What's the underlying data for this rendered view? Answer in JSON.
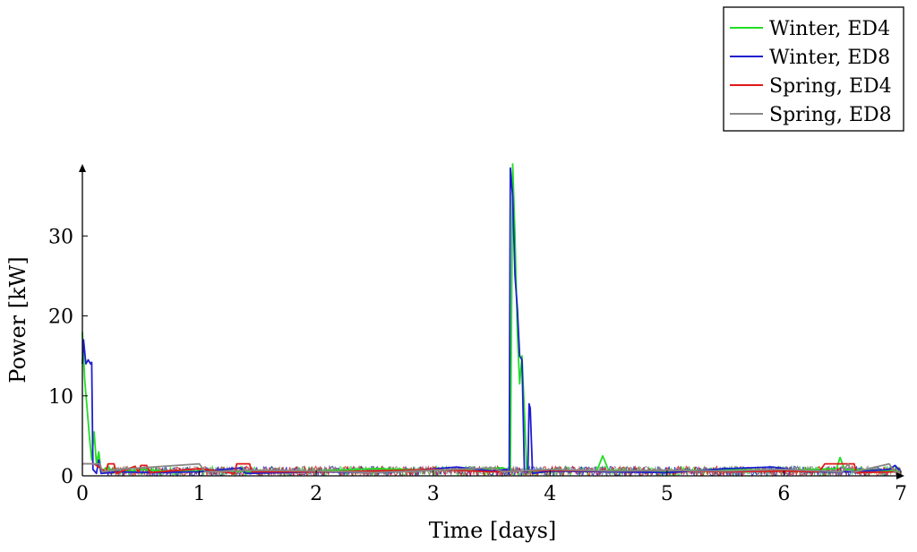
{
  "chart_data": {
    "type": "line",
    "title": "",
    "xlabel": "Time [days]",
    "ylabel": "Power [kW]",
    "xlim": [
      0,
      7
    ],
    "ylim": [
      0,
      39
    ],
    "x_ticks": [
      0,
      1,
      2,
      3,
      4,
      5,
      6,
      7
    ],
    "y_ticks": [
      0,
      10,
      20,
      30
    ],
    "grid": false,
    "legend_position": "top-right",
    "series": [
      {
        "name": "Winter, ED4",
        "color": "#22dd22",
        "points": [
          [
            0.0,
            18.0
          ],
          [
            0.02,
            12.0
          ],
          [
            0.04,
            8.5
          ],
          [
            0.06,
            5.0
          ],
          [
            0.08,
            2.0
          ],
          [
            0.1,
            5.5
          ],
          [
            0.12,
            1.5
          ],
          [
            0.14,
            3.0
          ],
          [
            0.16,
            0.5
          ],
          [
            0.2,
            1.0
          ],
          [
            0.3,
            0.4
          ],
          [
            0.5,
            0.8
          ],
          [
            0.8,
            0.5
          ],
          [
            1.0,
            0.6
          ],
          [
            1.5,
            0.5
          ],
          [
            2.0,
            0.6
          ],
          [
            2.5,
            0.9
          ],
          [
            3.0,
            0.7
          ],
          [
            3.3,
            0.8
          ],
          [
            3.6,
            1.0
          ],
          [
            3.66,
            0.5
          ],
          [
            3.68,
            39.0
          ],
          [
            3.7,
            30.0
          ],
          [
            3.72,
            18.0
          ],
          [
            3.74,
            11.5
          ],
          [
            3.76,
            15.0
          ],
          [
            3.78,
            8.0
          ],
          [
            3.8,
            1.0
          ],
          [
            3.82,
            0.5
          ],
          [
            4.0,
            0.8
          ],
          [
            4.4,
            0.6
          ],
          [
            4.45,
            2.5
          ],
          [
            4.5,
            0.7
          ],
          [
            5.0,
            0.6
          ],
          [
            5.5,
            0.8
          ],
          [
            6.0,
            0.7
          ],
          [
            6.45,
            0.9
          ],
          [
            6.48,
            2.3
          ],
          [
            6.52,
            0.8
          ],
          [
            7.0,
            0.6
          ]
        ]
      },
      {
        "name": "Winter, ED8",
        "color": "#1f1fcf",
        "points": [
          [
            0.0,
            14.0
          ],
          [
            0.01,
            17.0
          ],
          [
            0.03,
            14.0
          ],
          [
            0.05,
            14.5
          ],
          [
            0.07,
            14.0
          ],
          [
            0.08,
            14.2
          ],
          [
            0.09,
            0.8
          ],
          [
            0.12,
            0.3
          ],
          [
            0.14,
            2.0
          ],
          [
            0.16,
            0.3
          ],
          [
            0.3,
            0.5
          ],
          [
            0.6,
            0.4
          ],
          [
            1.0,
            0.5
          ],
          [
            1.35,
            1.0
          ],
          [
            1.4,
            0.3
          ],
          [
            2.0,
            0.5
          ],
          [
            2.6,
            0.4
          ],
          [
            3.2,
            1.1
          ],
          [
            3.5,
            0.6
          ],
          [
            3.63,
            0.8
          ],
          [
            3.65,
            0.2
          ],
          [
            3.66,
            38.5
          ],
          [
            3.68,
            35.0
          ],
          [
            3.7,
            25.0
          ],
          [
            3.72,
            21.0
          ],
          [
            3.74,
            15.0
          ],
          [
            3.76,
            14.5
          ],
          [
            3.78,
            0.5
          ],
          [
            3.81,
            0.5
          ],
          [
            3.82,
            9.0
          ],
          [
            3.83,
            8.5
          ],
          [
            3.85,
            0.3
          ],
          [
            4.0,
            0.6
          ],
          [
            4.5,
            0.5
          ],
          [
            5.0,
            0.4
          ],
          [
            5.5,
            0.9
          ],
          [
            5.9,
            1.1
          ],
          [
            6.2,
            0.5
          ],
          [
            6.6,
            0.5
          ],
          [
            6.9,
            0.8
          ],
          [
            6.95,
            1.3
          ],
          [
            7.0,
            0.5
          ]
        ]
      },
      {
        "name": "Spring, ED4",
        "color": "#e01818",
        "points": [
          [
            0.0,
            1.5
          ],
          [
            0.1,
            1.5
          ],
          [
            0.2,
            0.5
          ],
          [
            0.22,
            1.5
          ],
          [
            0.27,
            1.5
          ],
          [
            0.29,
            0.3
          ],
          [
            0.45,
            1.2
          ],
          [
            0.48,
            0.5
          ],
          [
            0.5,
            1.3
          ],
          [
            0.55,
            1.3
          ],
          [
            0.58,
            0.4
          ],
          [
            1.0,
            0.9
          ],
          [
            1.3,
            0.3
          ],
          [
            1.32,
            1.5
          ],
          [
            1.43,
            1.5
          ],
          [
            1.45,
            0.5
          ],
          [
            2.0,
            0.5
          ],
          [
            2.5,
            0.6
          ],
          [
            3.0,
            0.8
          ],
          [
            3.5,
            0.5
          ],
          [
            4.0,
            0.7
          ],
          [
            4.5,
            0.6
          ],
          [
            5.0,
            0.7
          ],
          [
            5.5,
            0.5
          ],
          [
            6.0,
            0.6
          ],
          [
            6.3,
            0.5
          ],
          [
            6.35,
            1.5
          ],
          [
            6.6,
            1.5
          ],
          [
            6.62,
            0.4
          ],
          [
            7.0,
            0.5
          ]
        ]
      },
      {
        "name": "Spring, ED8",
        "color": "#888888",
        "points": [
          [
            0.0,
            1.5
          ],
          [
            0.15,
            1.5
          ],
          [
            0.17,
            0.5
          ],
          [
            0.3,
            0.8
          ],
          [
            1.0,
            1.5
          ],
          [
            1.05,
            0.5
          ],
          [
            1.5,
            0.7
          ],
          [
            2.0,
            0.6
          ],
          [
            2.5,
            0.4
          ],
          [
            3.0,
            0.7
          ],
          [
            3.5,
            1.0
          ],
          [
            3.6,
            0.5
          ],
          [
            4.0,
            0.8
          ],
          [
            4.5,
            0.6
          ],
          [
            5.0,
            0.7
          ],
          [
            5.5,
            0.6
          ],
          [
            6.0,
            0.8
          ],
          [
            6.5,
            0.5
          ],
          [
            6.55,
            1.5
          ],
          [
            6.58,
            0.4
          ],
          [
            6.9,
            1.5
          ],
          [
            6.95,
            0.4
          ],
          [
            7.0,
            0.6
          ]
        ]
      }
    ]
  }
}
